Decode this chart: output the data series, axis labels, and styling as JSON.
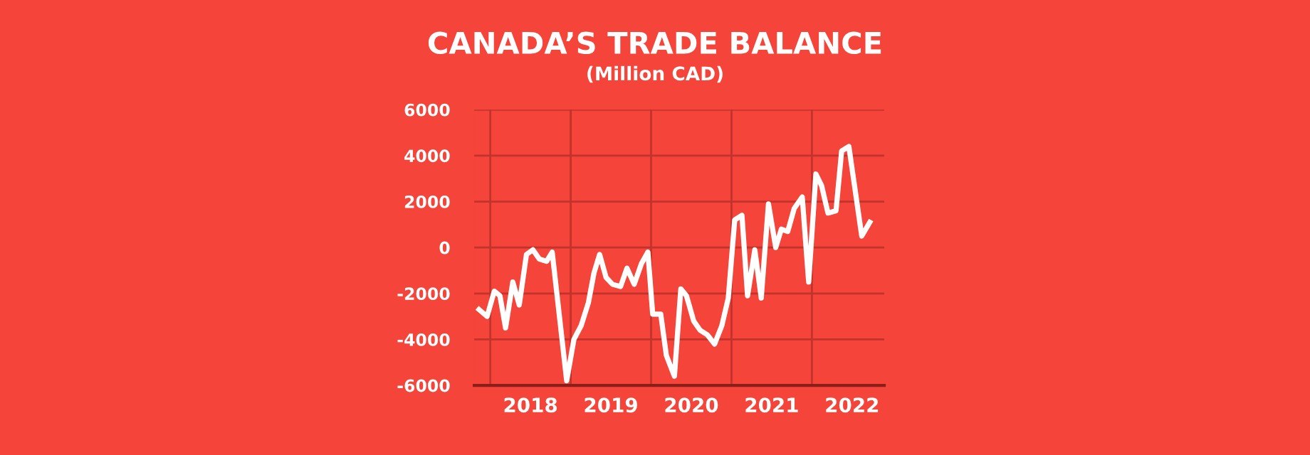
{
  "chart_data": {
    "type": "line",
    "title": "CANADA’S TRADE BALANCE",
    "subtitle": "(Million CAD)",
    "x": [
      2017.86,
      2017.96,
      2018.05,
      2018.12,
      2018.19,
      2018.28,
      2018.36,
      2018.45,
      2018.53,
      2018.61,
      2018.7,
      2018.77,
      2018.95,
      2019.04,
      2019.13,
      2019.22,
      2019.29,
      2019.36,
      2019.44,
      2019.52,
      2019.62,
      2019.7,
      2019.79,
      2019.88,
      2019.96,
      2020.02,
      2020.12,
      2020.19,
      2020.29,
      2020.37,
      2020.44,
      2020.53,
      2020.61,
      2020.7,
      2020.79,
      2020.88,
      2020.96,
      2021.04,
      2021.13,
      2021.2,
      2021.29,
      2021.37,
      2021.46,
      2021.55,
      2021.62,
      2021.7,
      2021.78,
      2021.88,
      2021.96,
      2022.05,
      2022.12,
      2022.2,
      2022.3,
      2022.37,
      2022.46,
      2022.62,
      2022.72
    ],
    "series": [
      {
        "color": "#ffffff",
        "values": [
          -2700,
          -3000,
          -1900,
          -2100,
          -3500,
          -1500,
          -2500,
          -300,
          -100,
          -500,
          -600,
          -200,
          -5800,
          -4000,
          -3400,
          -2400,
          -1100,
          -300,
          -1300,
          -1600,
          -1700,
          -900,
          -1600,
          -700,
          -200,
          -2900,
          -2900,
          -4700,
          -5600,
          -1800,
          -2100,
          -3200,
          -3600,
          -3800,
          -4200,
          -3400,
          -2200,
          1200,
          1400,
          -2100,
          -100,
          -2200,
          1900,
          0,
          800,
          700,
          1700,
          2200,
          -1500,
          3200,
          2700,
          1500,
          1600,
          4200,
          4400,
          500,
          1100
        ]
      }
    ],
    "xlim": [
      2017.8,
      2022.9
    ],
    "xticks": [
      {
        "value": 2018,
        "label": null
      },
      {
        "value": 2018.5,
        "label": "2018"
      },
      {
        "value": 2019,
        "label": null
      },
      {
        "value": 2019.5,
        "label": "2019"
      },
      {
        "value": 2020,
        "label": null
      },
      {
        "value": 2020.5,
        "label": "2020"
      },
      {
        "value": 2021,
        "label": null
      },
      {
        "value": 2021.5,
        "label": "2021"
      },
      {
        "value": 2022,
        "label": null
      },
      {
        "value": 2022.5,
        "label": "2022"
      }
    ],
    "ylim": [
      -6000,
      6000
    ],
    "yticks": [
      -6000,
      -4000,
      -2000,
      0,
      2000,
      4000,
      6000
    ],
    "grid": true,
    "line_style": "solid",
    "marker": "none"
  }
}
